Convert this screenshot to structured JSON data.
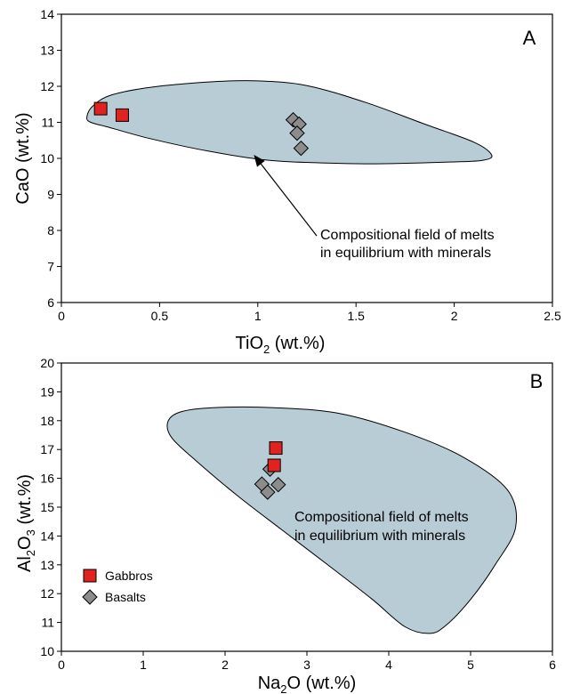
{
  "chart_data": [
    {
      "type": "scatter",
      "panel_label": "A",
      "xlabel": {
        "base": "TiO",
        "sub": "2",
        "rest": " (wt.%)"
      },
      "ylabel": "CaO (wt.%)",
      "xlim": [
        0,
        2.5
      ],
      "ylim": [
        6,
        14
      ],
      "xticks": [
        0,
        0.5,
        1,
        1.5,
        2,
        2.5
      ],
      "xtick_labels": [
        "0",
        "0.5",
        "1",
        "1.5",
        "2",
        "2.5"
      ],
      "yticks": [
        6,
        7,
        8,
        9,
        10,
        11,
        12,
        13,
        14
      ],
      "ytick_labels": [
        "6",
        "7",
        "8",
        "9",
        "10",
        "11",
        "12",
        "13",
        "14"
      ],
      "grid": false,
      "field_color": "#b8ccd6",
      "field_outline": [
        [
          0.13,
          11.15
        ],
        [
          0.16,
          11.45
        ],
        [
          0.25,
          11.75
        ],
        [
          0.45,
          11.97
        ],
        [
          0.75,
          12.12
        ],
        [
          1.0,
          12.15
        ],
        [
          1.25,
          12.02
        ],
        [
          1.55,
          11.55
        ],
        [
          1.85,
          10.95
        ],
        [
          2.1,
          10.45
        ],
        [
          2.19,
          10.1
        ],
        [
          2.15,
          9.95
        ],
        [
          2.0,
          9.9
        ],
        [
          1.6,
          9.85
        ],
        [
          1.3,
          9.88
        ],
        [
          1.05,
          9.95
        ],
        [
          0.75,
          10.2
        ],
        [
          0.45,
          10.55
        ],
        [
          0.25,
          10.85
        ],
        [
          0.15,
          11.0
        ]
      ],
      "series": [
        {
          "name": "Basalts",
          "marker": "diamond",
          "color": "#8c8c8c",
          "points": [
            [
              1.18,
              11.07
            ],
            [
              1.21,
              10.95
            ],
            [
              1.2,
              10.7
            ],
            [
              1.22,
              10.28
            ]
          ]
        },
        {
          "name": "Gabbros",
          "marker": "square",
          "color": "#e0231f",
          "points": [
            [
              0.2,
              11.38
            ],
            [
              0.31,
              11.2
            ]
          ]
        }
      ],
      "annotation": {
        "lines": [
          "Compositional field of melts",
          "in equilibrium with minerals"
        ],
        "text_at": [
          1.33,
          8.1
        ],
        "arrow_from": [
          1.3,
          7.85
        ],
        "arrow_to": [
          0.98,
          10.1
        ]
      }
    },
    {
      "type": "scatter",
      "panel_label": "B",
      "xlabel": {
        "base": "Na",
        "sub": "2",
        "rest": "O (wt.%)"
      },
      "ylabel": {
        "a": "Al",
        "sub1": "2",
        "b": "O",
        "sub2": "3",
        "rest": " (wt.%)"
      },
      "xlim": [
        0,
        6
      ],
      "ylim": [
        10,
        20
      ],
      "xticks": [
        0,
        1,
        2,
        3,
        4,
        5,
        6
      ],
      "xtick_labels": [
        "0",
        "1",
        "2",
        "3",
        "4",
        "5",
        "6"
      ],
      "yticks": [
        10,
        11,
        12,
        13,
        14,
        15,
        16,
        17,
        18,
        19,
        20
      ],
      "ytick_labels": [
        "10",
        "11",
        "12",
        "13",
        "14",
        "15",
        "16",
        "17",
        "18",
        "19",
        "20"
      ],
      "grid": false,
      "field_color": "#b8ccd6",
      "field_outline": [
        [
          1.85,
          18.45
        ],
        [
          2.6,
          18.45
        ],
        [
          3.4,
          18.25
        ],
        [
          4.2,
          17.6
        ],
        [
          4.9,
          16.75
        ],
        [
          5.45,
          15.6
        ],
        [
          5.55,
          14.3
        ],
        [
          5.3,
          13.0
        ],
        [
          5.0,
          11.8
        ],
        [
          4.7,
          10.9
        ],
        [
          4.5,
          10.62
        ],
        [
          4.2,
          10.85
        ],
        [
          3.8,
          11.8
        ],
        [
          3.3,
          12.9
        ],
        [
          2.7,
          14.2
        ],
        [
          2.15,
          15.4
        ],
        [
          1.65,
          16.6
        ],
        [
          1.35,
          17.4
        ],
        [
          1.3,
          17.95
        ],
        [
          1.45,
          18.3
        ]
      ],
      "series": [
        {
          "name": "Basalts",
          "marker": "diamond",
          "color": "#8c8c8c",
          "points": [
            [
              2.55,
              16.32
            ],
            [
              2.45,
              15.8
            ],
            [
              2.65,
              15.78
            ],
            [
              2.52,
              15.52
            ]
          ]
        },
        {
          "name": "Gabbros",
          "marker": "square",
          "color": "#e0231f",
          "points": [
            [
              2.62,
              17.05
            ],
            [
              2.6,
              16.45
            ]
          ]
        }
      ],
      "annotation": {
        "lines": [
          "Compositional field of melts",
          "in equilibrium with minerals"
        ]
      },
      "legend": {
        "placement": "bottom-left",
        "entries": [
          {
            "label": "Basalts",
            "marker": "diamond",
            "color": "#8c8c8c"
          },
          {
            "label": "Gabbros",
            "marker": "square",
            "color": "#e0231f"
          }
        ]
      }
    }
  ]
}
